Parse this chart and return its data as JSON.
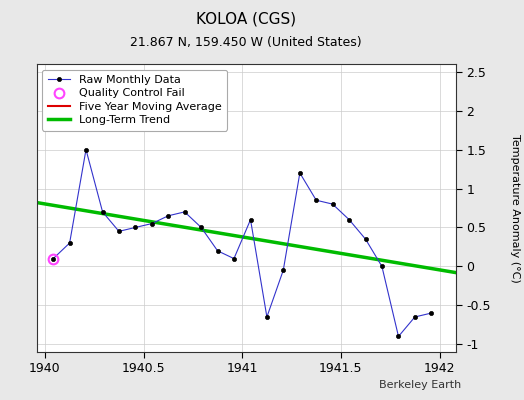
{
  "title": "KOLOA (CGS)",
  "subtitle": "21.867 N, 159.450 W (United States)",
  "credit": "Berkeley Earth",
  "ylabel": "Temperature Anomaly (°C)",
  "xlim": [
    1939.958,
    1942.083
  ],
  "ylim": [
    -1.1,
    2.6
  ],
  "xticks": [
    1940,
    1940.5,
    1941,
    1941.5,
    1942
  ],
  "yticks": [
    -1,
    -0.5,
    0,
    0.5,
    1,
    1.5,
    2,
    2.5
  ],
  "background_color": "#e8e8e8",
  "plot_background": "#ffffff",
  "raw_x": [
    1940.042,
    1940.125,
    1940.208,
    1940.292,
    1940.375,
    1940.458,
    1940.542,
    1940.625,
    1940.708,
    1940.792,
    1940.875,
    1940.958,
    1941.042,
    1941.125,
    1941.208,
    1941.292,
    1941.375,
    1941.458,
    1941.542,
    1941.625,
    1941.708,
    1941.792,
    1941.875,
    1941.958
  ],
  "raw_y": [
    0.1,
    0.3,
    1.5,
    0.7,
    0.45,
    0.5,
    0.55,
    0.65,
    0.7,
    0.5,
    0.2,
    0.1,
    0.6,
    -0.65,
    -0.05,
    1.2,
    0.85,
    0.8,
    0.6,
    0.35,
    0.0,
    -0.9,
    -0.65,
    -0.6
  ],
  "qc_fail_x": [
    1940.042
  ],
  "qc_fail_y": [
    0.1
  ],
  "trend_x": [
    1939.958,
    1942.083
  ],
  "trend_y": [
    0.82,
    -0.08
  ],
  "raw_line_color": "#3333cc",
  "raw_marker_color": "#000000",
  "qc_color": "#ff44ff",
  "trend_color": "#00bb00",
  "moving_avg_color": "#dd0000",
  "grid_color": "#cccccc",
  "title_fontsize": 11,
  "subtitle_fontsize": 9,
  "axis_fontsize": 8,
  "tick_fontsize": 9,
  "legend_fontsize": 8,
  "credit_fontsize": 8
}
